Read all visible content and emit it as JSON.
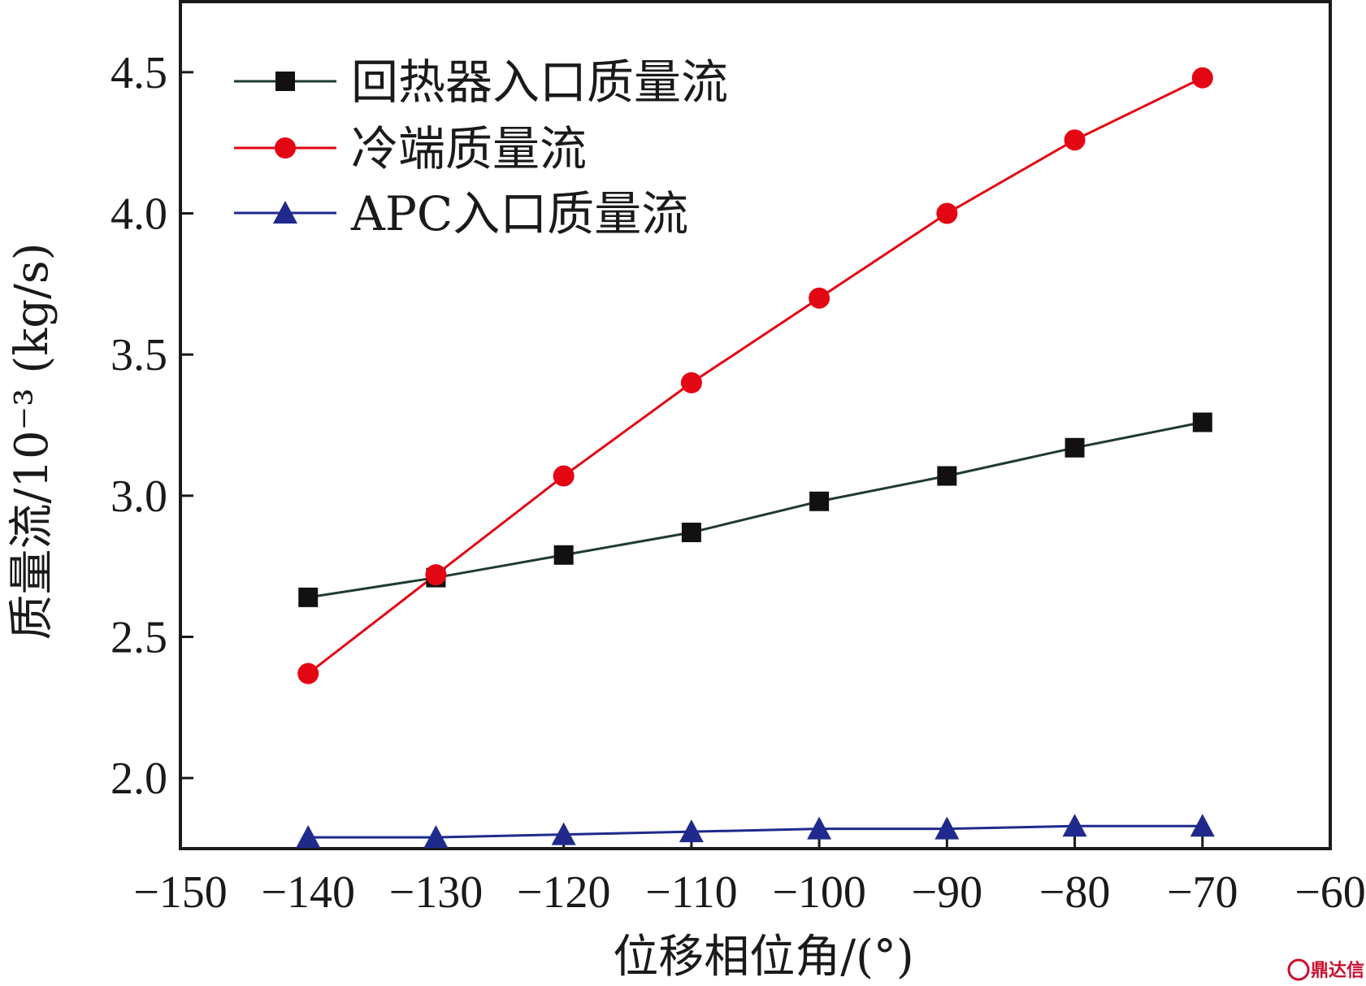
{
  "chart_data": {
    "type": "line",
    "title": "",
    "xlabel": "位移相位角/(°)",
    "ylabel": "质量流/10⁻³ (kg/s)",
    "xlim": [
      -150,
      -60
    ],
    "ylim": [
      1.75,
      4.75
    ],
    "x_ticks": [
      -150,
      -140,
      -130,
      -120,
      -110,
      -100,
      -90,
      -80,
      -70,
      -60
    ],
    "x_tick_labels": [
      "−150",
      "−140",
      "−130",
      "−120",
      "−110",
      "−100",
      "−90",
      "−80",
      "−70",
      "−60"
    ],
    "y_ticks": [
      2.0,
      2.5,
      3.0,
      3.5,
      4.0,
      4.5
    ],
    "y_tick_labels": [
      "2.0",
      "2.5",
      "3.0",
      "3.5",
      "4.0",
      "4.5"
    ],
    "grid": false,
    "legend_position": "top-left",
    "x": [
      -140,
      -130,
      -120,
      -110,
      -100,
      -90,
      -80,
      -70
    ],
    "series": [
      {
        "name": "回热器入口质量流",
        "color": "#111111",
        "line_color": "#1f3b2f",
        "marker": "square",
        "values": [
          2.64,
          2.71,
          2.79,
          2.87,
          2.98,
          3.07,
          3.17,
          3.26
        ]
      },
      {
        "name": "冷端质量流",
        "color": "#e30613",
        "line_color": "#e30613",
        "marker": "circle",
        "values": [
          2.37,
          2.72,
          3.07,
          3.4,
          3.7,
          4.0,
          4.26,
          4.48
        ]
      },
      {
        "name": "APC入口质量流",
        "color": "#1f2a8c",
        "line_color": "#1f2a8c",
        "marker": "triangle",
        "values": [
          1.79,
          1.79,
          1.8,
          1.81,
          1.82,
          1.82,
          1.83,
          1.83
        ]
      }
    ]
  },
  "watermark": {
    "text": "鼎达信",
    "color": "#c8102e"
  }
}
